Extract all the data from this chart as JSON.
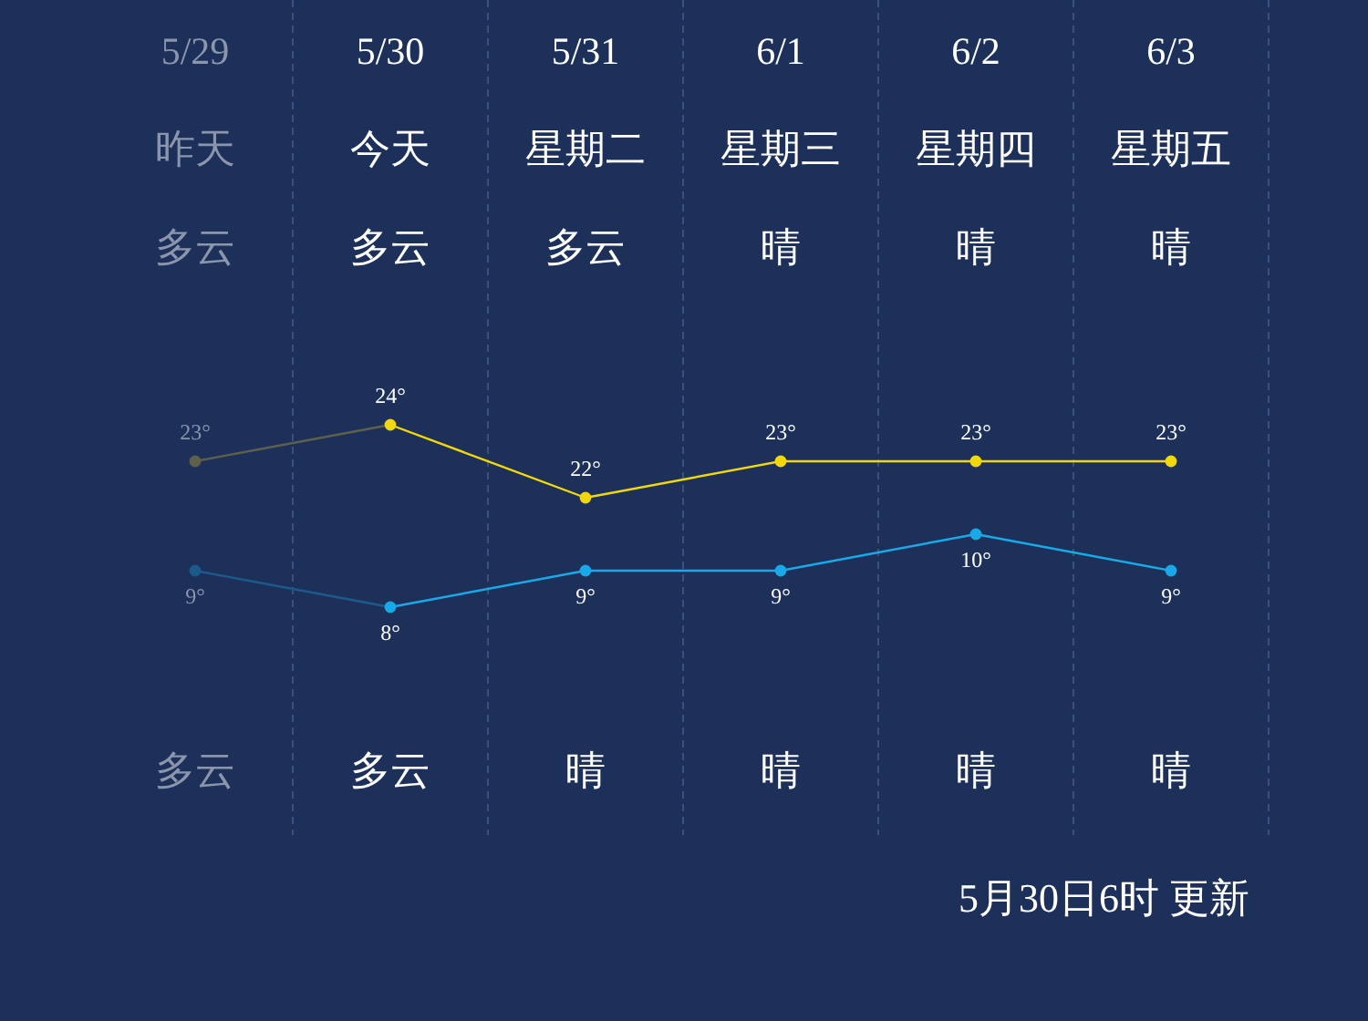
{
  "chart_data": [
    {
      "type": "line",
      "categories": [
        "5/29",
        "5/30",
        "5/31",
        "6/1",
        "6/2",
        "6/3"
      ],
      "series": [
        {
          "color": "#f2d80a",
          "colors": [
            "#5e604a",
            "#f2d80a",
            "#f2d80a",
            "#f2d80a",
            "#f2d80a",
            "#f2d80a"
          ],
          "values": [
            23,
            24,
            22,
            23,
            23,
            23
          ],
          "value_labels": [
            "23°",
            "24°",
            "22°",
            "23°",
            "23°",
            "23°"
          ]
        }
      ],
      "tick_labels": "x",
      "marker": "circle",
      "grid": "x",
      "annotations": [
        "昨天",
        "今天",
        "星期二",
        "星期三",
        "星期四",
        "星期五",
        "多云",
        "多云",
        "多云",
        "晴",
        "晴",
        "晴"
      ]
    },
    {
      "type": "line",
      "categories": [
        null,
        null,
        null,
        null,
        null,
        null
      ],
      "series": [
        {
          "color": "#19a9e8",
          "colors": [
            "#1d5a8c",
            "#19a9e8",
            "#19a9e8",
            "#19a9e8",
            "#19a9e8",
            "#19a9e8"
          ],
          "values": [
            9,
            8,
            9,
            9,
            10,
            9
          ],
          "value_labels": [
            "9°",
            "8°",
            "9°",
            "9°",
            "10°",
            "9°"
          ]
        }
      ],
      "tick_labels": false,
      "marker": "circle",
      "annotations": [
        "多云",
        "多云",
        "晴",
        "晴",
        "晴",
        "晴",
        "5月30日6时 更新"
      ]
    }
  ]
}
